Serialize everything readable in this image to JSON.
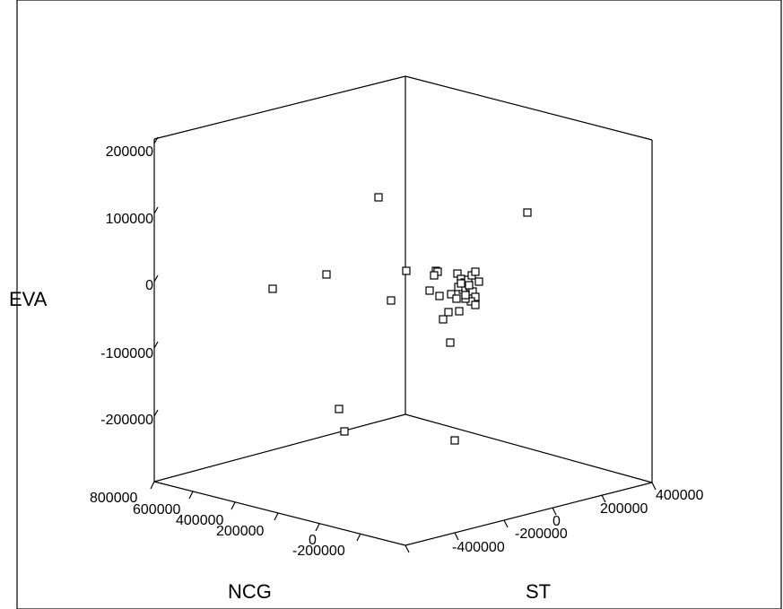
{
  "chart_data": {
    "type": "scatter",
    "projection": "3d",
    "axes": {
      "x": {
        "label": "NCG",
        "ticks": [
          800000,
          600000,
          400000,
          200000,
          0,
          -200000
        ]
      },
      "y": {
        "label": "ST",
        "ticks": [
          -400000,
          -200000,
          0,
          200000,
          400000
        ]
      },
      "z": {
        "label": "EVA",
        "ticks": [
          200000,
          100000,
          0,
          -100000,
          -200000
        ]
      }
    },
    "points_screen": [
      [
        422,
        220
      ],
      [
        588,
        237
      ],
      [
        364,
        306
      ],
      [
        304,
        322
      ],
      [
        453,
        302
      ],
      [
        436,
        335
      ],
      [
        378,
        456
      ],
      [
        384,
        481
      ],
      [
        507,
        491
      ],
      [
        502,
        382
      ],
      [
        494,
        356
      ],
      [
        500,
        348
      ],
      [
        512,
        347
      ],
      [
        486,
        302
      ],
      [
        488,
        303
      ],
      [
        484,
        307
      ],
      [
        490,
        330
      ],
      [
        479,
        324
      ],
      [
        503,
        328
      ],
      [
        510,
        305
      ],
      [
        514,
        311
      ],
      [
        518,
        315
      ],
      [
        522,
        312
      ],
      [
        526,
        307
      ],
      [
        530,
        303
      ],
      [
        534,
        314
      ],
      [
        521,
        320
      ],
      [
        516,
        323
      ],
      [
        511,
        320
      ],
      [
        527,
        325
      ],
      [
        530,
        331
      ],
      [
        525,
        336
      ],
      [
        530,
        340
      ],
      [
        519,
        333
      ],
      [
        509,
        333
      ],
      [
        514,
        316
      ],
      [
        523,
        318
      ],
      [
        519,
        329
      ]
    ],
    "grid": false,
    "legend": "none"
  }
}
